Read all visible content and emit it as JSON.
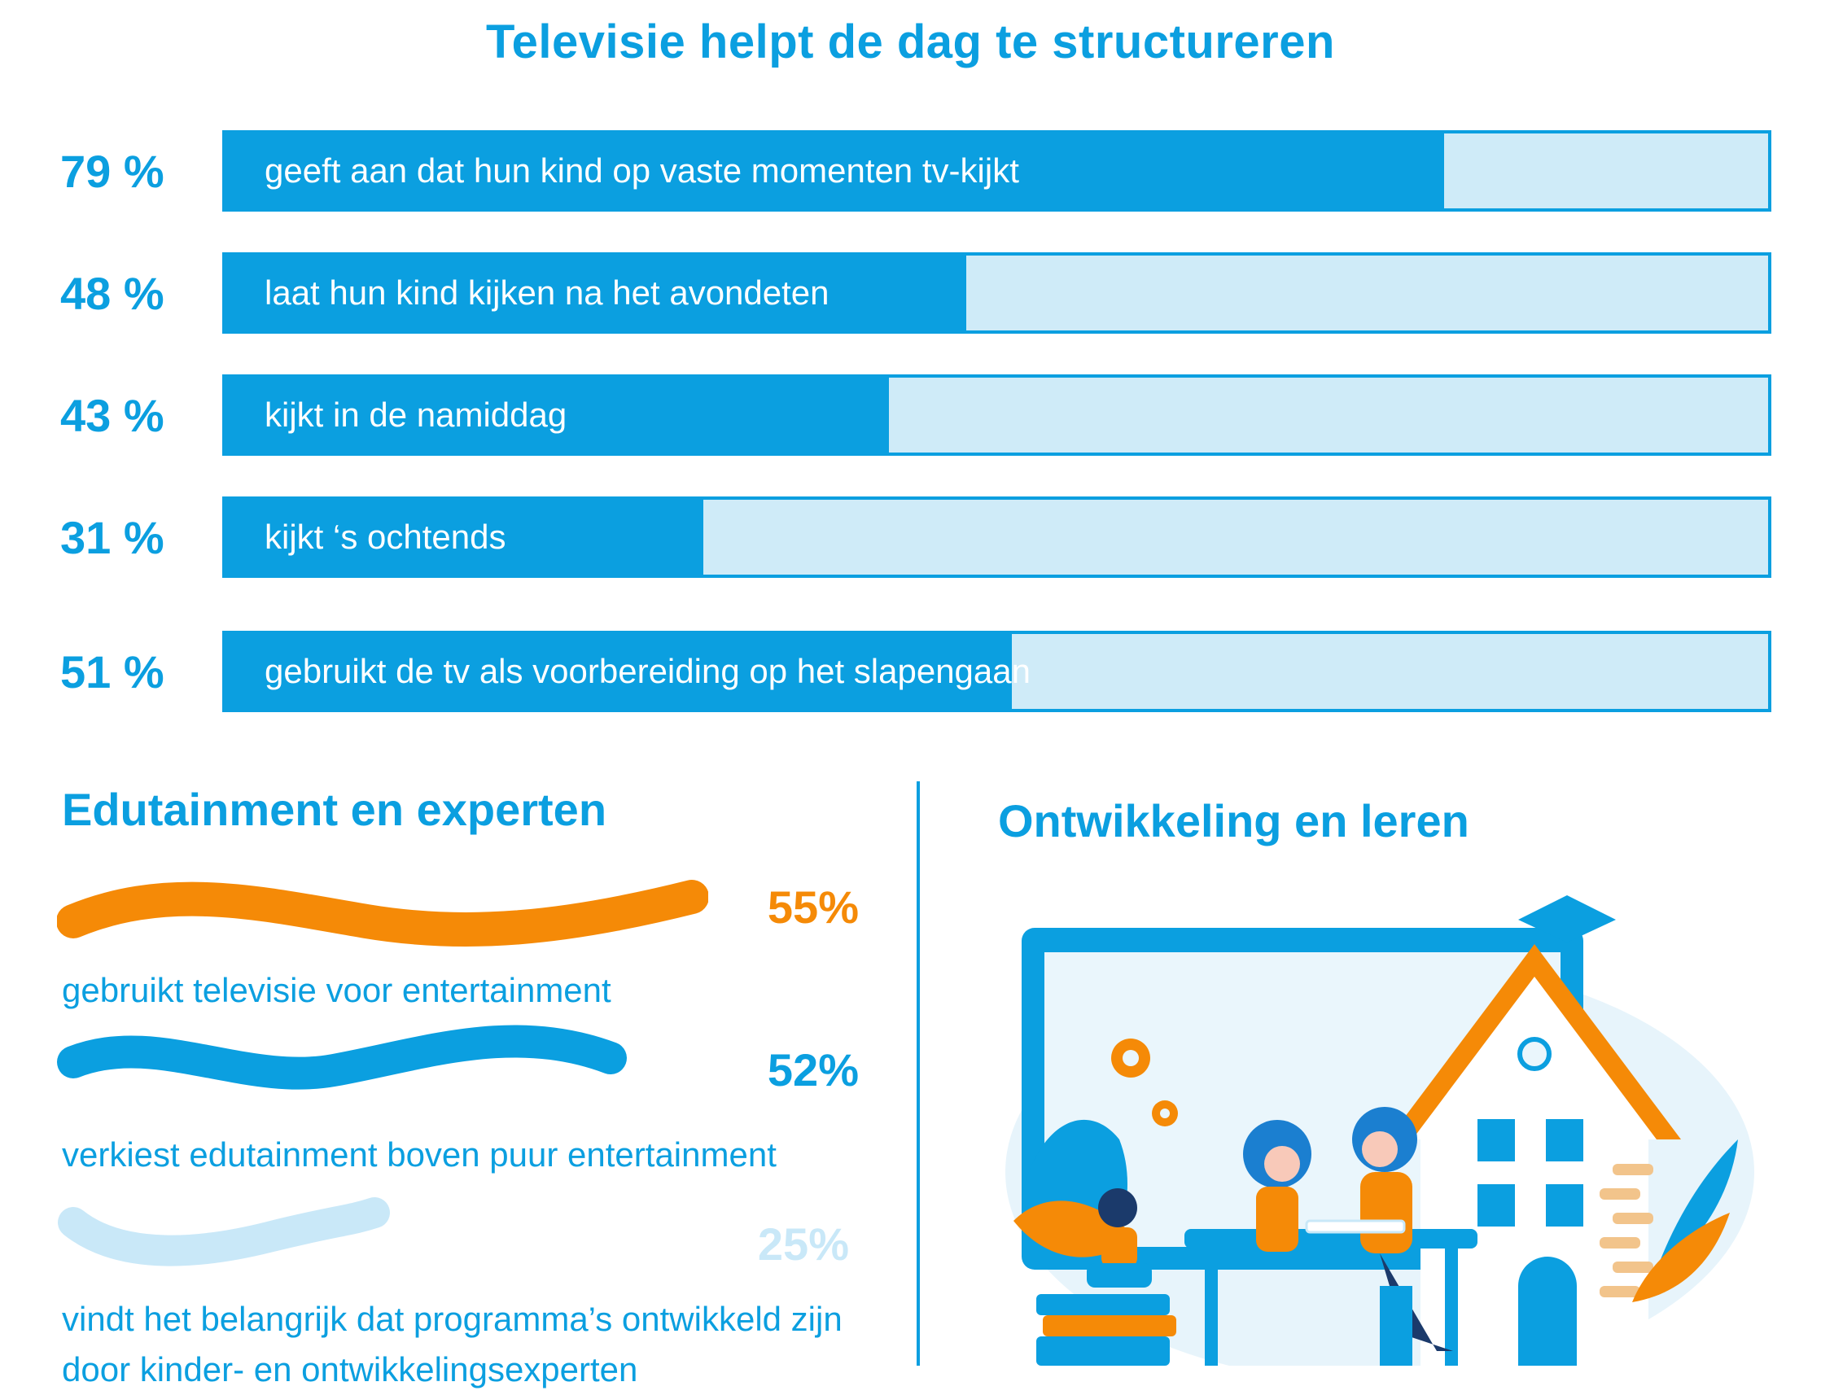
{
  "title": "Televisie helpt de dag te structureren",
  "chart_data": {
    "type": "bar",
    "orientation": "horizontal",
    "title": "Televisie helpt de dag te structureren",
    "categories": [
      "geeft aan dat hun kind op vaste momenten tv-kijkt",
      "laat hun kind kijken na het avondeten",
      "kijkt in de namiddag",
      "kijkt ‘s ochtends",
      "gebruikt de tv als voorbereiding op het slapengaan"
    ],
    "values": [
      79,
      48,
      43,
      31,
      51
    ],
    "value_labels": [
      "79 %",
      "48 %",
      "43 %",
      "31 %",
      "51 %"
    ],
    "xlim": [
      0,
      100
    ],
    "grid": false,
    "legend": "none"
  },
  "edutainment": {
    "title": "Edutainment en experten",
    "items": [
      {
        "value": 55,
        "label": "55%",
        "text": "gebruikt televisie voor entertainment",
        "color": "#f58a07"
      },
      {
        "value": 52,
        "label": "52%",
        "text": "verkiest edutainment boven puur entertainment",
        "color": "#0b9fe0"
      },
      {
        "value": 25,
        "label": "25%",
        "text": "vindt het belangrijk dat programma’s ontwikkeld zijn door kinder- en ontwikkelingsexperten",
        "color": "#c9e8f8"
      }
    ]
  },
  "learning": {
    "title": "Ontwikkeling en leren",
    "illustration": "house-family-study-icon"
  },
  "colors": {
    "accent": "#0b9fe0",
    "light": "#cfebf8",
    "orange": "#f58a07"
  }
}
